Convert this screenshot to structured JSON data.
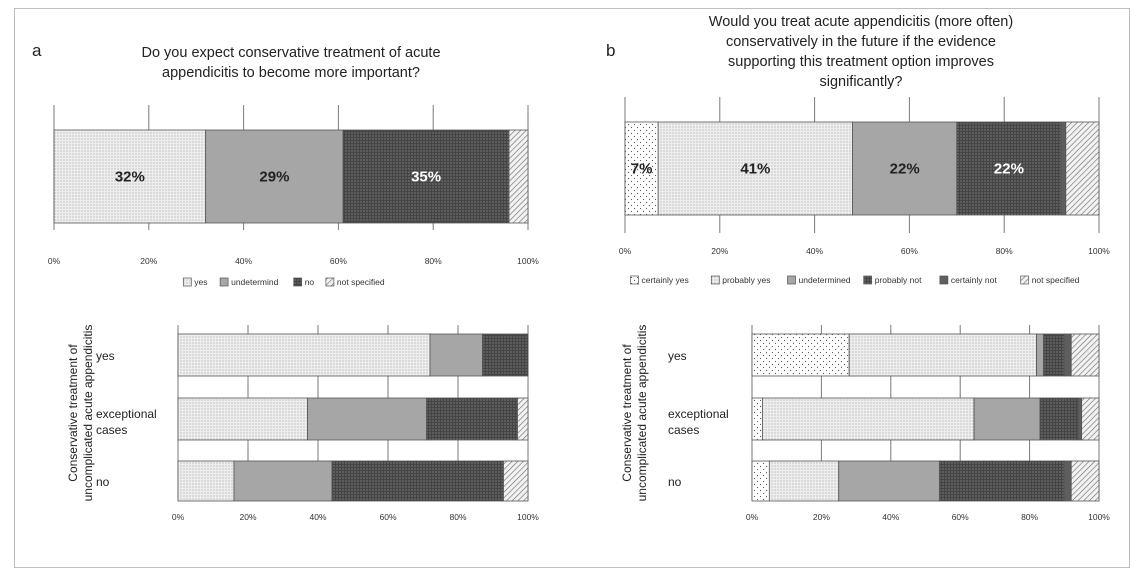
{
  "chart_data": [
    {
      "id": "a_top",
      "type": "bar",
      "orientation": "horizontal",
      "stacked": true,
      "panel": "a",
      "title": "Do you expect conservative treatment of acute appendicitis to become more important?",
      "x_ticks": [
        "0%",
        "20%",
        "40%",
        "60%",
        "80%",
        "100%"
      ],
      "xlim": [
        0,
        100
      ],
      "legend_position": "bottom",
      "series": [
        {
          "name": "yes",
          "pattern": "dots-light",
          "values": [
            32
          ],
          "label": "32%"
        },
        {
          "name": "undetermind",
          "pattern": "solid-gray",
          "values": [
            29
          ],
          "label": "29%"
        },
        {
          "name": "no",
          "pattern": "dots-dark",
          "values": [
            35
          ],
          "label": "35%"
        },
        {
          "name": "not specified",
          "pattern": "hatch",
          "values": [
            4
          ]
        }
      ]
    },
    {
      "id": "a_bottom",
      "type": "bar",
      "orientation": "horizontal",
      "stacked": true,
      "panel": "a",
      "ylabel": "Conservative treatment of uncomplicated acute appendicitis",
      "categories": [
        "yes",
        "exceptional cases",
        "no"
      ],
      "x_ticks": [
        "0%",
        "20%",
        "40%",
        "60%",
        "80%",
        "100%"
      ],
      "xlim": [
        0,
        100
      ],
      "series": [
        {
          "name": "yes",
          "pattern": "dots-light",
          "values": [
            72,
            37,
            16
          ]
        },
        {
          "name": "undetermind",
          "pattern": "solid-gray",
          "values": [
            15,
            34,
            28
          ]
        },
        {
          "name": "no",
          "pattern": "dots-dark",
          "values": [
            13,
            26,
            49
          ]
        },
        {
          "name": "not specified",
          "pattern": "hatch",
          "values": [
            0,
            3,
            7
          ]
        }
      ]
    },
    {
      "id": "b_top",
      "type": "bar",
      "orientation": "horizontal",
      "stacked": true,
      "panel": "b",
      "title": "Would you treat acute appendicitis (more often) conservatively in the future if the evidence supporting this treatment option improves significantly?",
      "x_ticks": [
        "0%",
        "20%",
        "40%",
        "60%",
        "80%",
        "100%"
      ],
      "xlim": [
        0,
        100
      ],
      "legend_position": "bottom",
      "series": [
        {
          "name": "certainly yes",
          "pattern": "dots-sparse",
          "values": [
            7
          ],
          "label": "7%"
        },
        {
          "name": "probably yes",
          "pattern": "dots-light",
          "values": [
            41
          ],
          "label": "41%"
        },
        {
          "name": "undetermined",
          "pattern": "solid-gray",
          "values": [
            22
          ],
          "label": "22%"
        },
        {
          "name": "probably not",
          "pattern": "dots-dark",
          "values": [
            22
          ],
          "label": "22%"
        },
        {
          "name": "certainly not",
          "pattern": "solid-dark",
          "values": [
            1
          ]
        },
        {
          "name": "not specified",
          "pattern": "hatch",
          "values": [
            7
          ]
        }
      ]
    },
    {
      "id": "b_bottom",
      "type": "bar",
      "orientation": "horizontal",
      "stacked": true,
      "panel": "b",
      "ylabel": "Conservative treatment of uncomplicated acute appendicitis",
      "categories": [
        "yes",
        "exceptional cases",
        "no"
      ],
      "x_ticks": [
        "0%",
        "20%",
        "40%",
        "60%",
        "80%",
        "100%"
      ],
      "xlim": [
        0,
        100
      ],
      "series": [
        {
          "name": "certainly yes",
          "pattern": "dots-sparse",
          "values": [
            28,
            3,
            5
          ]
        },
        {
          "name": "probably yes",
          "pattern": "dots-light",
          "values": [
            54,
            61,
            20
          ]
        },
        {
          "name": "undetermined",
          "pattern": "solid-gray",
          "values": [
            2,
            19,
            29
          ]
        },
        {
          "name": "probably not",
          "pattern": "dots-dark",
          "values": [
            6,
            11,
            36
          ]
        },
        {
          "name": "certainly not",
          "pattern": "solid-dark",
          "values": [
            2,
            1,
            2
          ]
        },
        {
          "name": "not specified",
          "pattern": "hatch",
          "values": [
            8,
            5,
            8
          ]
        }
      ]
    }
  ],
  "panels": {
    "a": {
      "letter": "a"
    },
    "b": {
      "letter": "b"
    }
  },
  "colors": {
    "dots-sparse-bg": "#ffffff",
    "dots-light-bg": "#eeeeee",
    "solid-gray": "#a6a6a6",
    "dots-dark-bg": "#444444",
    "solid-dark": "#5e5e5e",
    "hatch-bg": "#f2f2f2",
    "grid": "#7a7a7a",
    "bar-stroke": "#555555"
  }
}
